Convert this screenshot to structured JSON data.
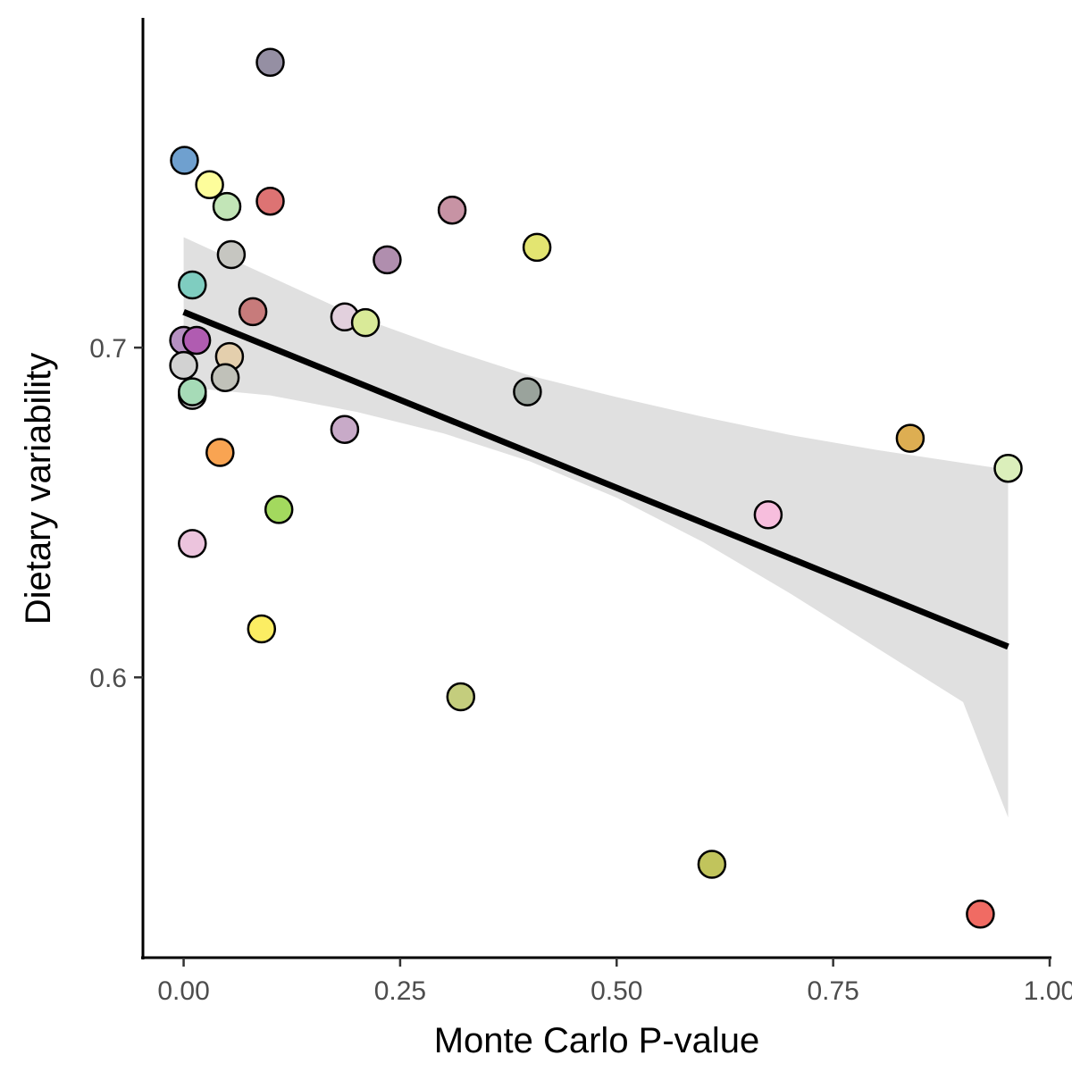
{
  "chart_data": {
    "type": "scatter",
    "title": "",
    "xlabel": "Monte Carlo P-value",
    "ylabel": "Dietary variability",
    "xlim": [
      -0.047,
      1.0
    ],
    "ylim": [
      0.515,
      0.8
    ],
    "x_ticks": [
      0.0,
      0.25,
      0.5,
      0.75,
      1.0
    ],
    "x_tick_labels": [
      "0.00",
      "0.25",
      "0.50",
      "0.75",
      "1.00"
    ],
    "y_ticks": [
      0.6,
      0.7
    ],
    "y_tick_labels": [
      "0.6",
      "0.7"
    ],
    "grid": false,
    "legend": "none",
    "points": [
      {
        "x": 0.1,
        "y": 0.7865,
        "color": "#958fa3"
      },
      {
        "x": 0.001,
        "y": 0.7568,
        "color": "#6fa0cf"
      },
      {
        "x": 0.03,
        "y": 0.7494,
        "color": "#fdfd9b"
      },
      {
        "x": 0.05,
        "y": 0.7428,
        "color": "#c2e5b7"
      },
      {
        "x": 0.1,
        "y": 0.7444,
        "color": "#dd7373"
      },
      {
        "x": 0.31,
        "y": 0.7417,
        "color": "#c793a4"
      },
      {
        "x": 0.055,
        "y": 0.7282,
        "color": "#c6c6c1"
      },
      {
        "x": 0.408,
        "y": 0.7304,
        "color": "#e3e571"
      },
      {
        "x": 0.235,
        "y": 0.7266,
        "color": "#b08eae"
      },
      {
        "x": 0.01,
        "y": 0.719,
        "color": "#7fcdc0"
      },
      {
        "x": 0.08,
        "y": 0.7109,
        "color": "#c77b7b"
      },
      {
        "x": 0.186,
        "y": 0.7093,
        "color": "#e2d0dd"
      },
      {
        "x": 0.21,
        "y": 0.7076,
        "color": "#d9ea98"
      },
      {
        "x": 0.0,
        "y": 0.7022,
        "color": "#b690c1"
      },
      {
        "x": 0.015,
        "y": 0.7022,
        "color": "#b05cb1"
      },
      {
        "x": 0.053,
        "y": 0.6973,
        "color": "#e4cfad"
      },
      {
        "x": 0.0,
        "y": 0.6946,
        "color": "#d2d2d2"
      },
      {
        "x": 0.048,
        "y": 0.6909,
        "color": "#c0c1b9"
      },
      {
        "x": 0.01,
        "y": 0.6855,
        "color": "#d9d9d9"
      },
      {
        "x": 0.01,
        "y": 0.6866,
        "color": "#a6dbb7"
      },
      {
        "x": 0.397,
        "y": 0.6866,
        "color": "#9aa39c"
      },
      {
        "x": 0.186,
        "y": 0.6752,
        "color": "#c8aac8"
      },
      {
        "x": 0.042,
        "y": 0.6682,
        "color": "#f9a452"
      },
      {
        "x": 0.839,
        "y": 0.6725,
        "color": "#ddae52"
      },
      {
        "x": 0.952,
        "y": 0.6634,
        "color": "#dbefbb"
      },
      {
        "x": 0.11,
        "y": 0.6509,
        "color": "#a3d95e"
      },
      {
        "x": 0.675,
        "y": 0.6493,
        "color": "#f7bedd"
      },
      {
        "x": 0.01,
        "y": 0.6406,
        "color": "#ecc4dd"
      },
      {
        "x": 0.09,
        "y": 0.6147,
        "color": "#fbed63"
      },
      {
        "x": 0.32,
        "y": 0.5941,
        "color": "#c4cd7d"
      },
      {
        "x": 0.61,
        "y": 0.5433,
        "color": "#c1c45c"
      },
      {
        "x": 0.92,
        "y": 0.5282,
        "color": "#f06b63"
      }
    ],
    "trend_line": {
      "x0": 0.0,
      "y0": 0.7108,
      "x1": 0.952,
      "y1": 0.6093,
      "color": "#000000"
    },
    "confidence_band": {
      "color": "#e0e0e0",
      "x": [
        0.0,
        0.1,
        0.2,
        0.3,
        0.4,
        0.5,
        0.6,
        0.7,
        0.8,
        0.9,
        0.952
      ],
      "upper": [
        0.7335,
        0.7215,
        0.7095,
        0.7,
        0.6915,
        0.685,
        0.679,
        0.6735,
        0.669,
        0.665,
        0.663
      ],
      "lower": [
        0.688,
        0.6855,
        0.6805,
        0.674,
        0.6655,
        0.6545,
        0.641,
        0.6255,
        0.609,
        0.5925,
        0.5575
      ]
    }
  }
}
